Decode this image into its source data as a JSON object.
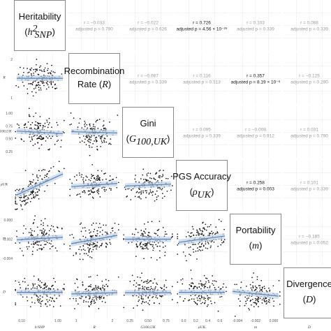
{
  "chart_data": {
    "type": "scatter",
    "variables": [
      {
        "key": "h",
        "label": "Heritability",
        "symbol": "h",
        "sup": "2",
        "sub": "SNP",
        "axis_label": "h²SNP",
        "ticks": [
          "0.10",
          "1.00"
        ],
        "range": [
          0.0,
          1.1
        ]
      },
      {
        "key": "R",
        "label": "Recombination",
        "label2": "Rate",
        "symbol": "R",
        "axis_label": "R",
        "ticks": [
          "1",
          "2"
        ],
        "range": [
          0.5,
          2.5
        ]
      },
      {
        "key": "G",
        "label": "Gini",
        "symbol": "G",
        "sub": "100,UK",
        "axis_label": "G100,UK",
        "ticks": [
          "0.25",
          "0.50",
          "0.75"
        ],
        "range": [
          0.2,
          0.95
        ]
      },
      {
        "key": "rho",
        "label": "PGS Accuracy",
        "symbol": "ρ",
        "sub": "UK",
        "axis_label": "ρUK",
        "ticks": [
          "0.0",
          "0.2",
          "0.4",
          "0.6"
        ],
        "range": [
          -0.05,
          0.7
        ]
      },
      {
        "key": "m",
        "label": "Portability",
        "symbol": "m",
        "axis_label": "m",
        "ticks": [
          "-0.004",
          "-0.002",
          "0.000"
        ],
        "range": [
          -0.005,
          0.001
        ]
      },
      {
        "key": "D",
        "label": "Divergence",
        "symbol": "D",
        "axis_label": "D",
        "ticks": [],
        "range": [
          0,
          1
        ]
      }
    ],
    "row_ticks": {
      "R": [
        "2",
        "1"
      ],
      "G": [
        "1.00",
        "0.75",
        "0.50",
        "0.25"
      ],
      "m": [
        "0.000",
        "-0.002",
        "-0.004"
      ]
    },
    "correlations": [
      {
        "row": 0,
        "col": 1,
        "r": "r = −0.033",
        "p": "adjusted p = 0.790",
        "sig": false
      },
      {
        "row": 0,
        "col": 2,
        "r": "r = −0.022",
        "p": "adjusted p = 0.626",
        "sig": false
      },
      {
        "row": 0,
        "col": 3,
        "r": "r = 0.726",
        "p": "adjusted p = 4.56 × 10⁻²⁹",
        "sig": true
      },
      {
        "row": 0,
        "col": 4,
        "r": "r = 0.103",
        "p": "adjusted p = 0.339",
        "sig": false
      },
      {
        "row": 0,
        "col": 5,
        "r": "r = 0.088",
        "p": "adjusted p = 0.339",
        "sig": false
      },
      {
        "row": 1,
        "col": 2,
        "r": "r = −0.087",
        "p": "adjusted p = 0.339",
        "sig": false
      },
      {
        "row": 1,
        "col": 3,
        "r": "r = 0.116",
        "p": "adjusted p = 0.313",
        "sig": false
      },
      {
        "row": 1,
        "col": 4,
        "r": "r = 0.357",
        "p": "adjusted p = 8.19 × 10⁻⁶",
        "sig": true
      },
      {
        "row": 1,
        "col": 5,
        "r": "r = −0.125",
        "p": "adjusted p = 0.290",
        "sig": false
      },
      {
        "row": 2,
        "col": 3,
        "r": "r = 0.095",
        "p": "adjusted p = 0.339",
        "sig": false
      },
      {
        "row": 2,
        "col": 4,
        "r": "r = −0.008",
        "p": "adjusted p = 0.912",
        "sig": false
      },
      {
        "row": 2,
        "col": 5,
        "r": "r = 0.031",
        "p": "adjusted p = 0.790",
        "sig": false
      },
      {
        "row": 3,
        "col": 4,
        "r": "r = 0.258",
        "p": "adjusted p = 0.003",
        "sig": true
      },
      {
        "row": 3,
        "col": 5,
        "r": "r = 0.101",
        "p": "adjusted p = 0.339",
        "sig": false
      },
      {
        "row": 4,
        "col": 5,
        "r": "r = −0.185",
        "p": "adjusted p = 0.052",
        "sig": false
      }
    ],
    "scatter_cells": [
      {
        "row": 1,
        "col": 0,
        "trend": [
          0.02,
          0.02
        ]
      },
      {
        "row": 2,
        "col": 0,
        "trend": [
          0.1,
          -0.1
        ]
      },
      {
        "row": 2,
        "col": 1,
        "trend": [
          0.05,
          -0.05
        ]
      },
      {
        "row": 3,
        "col": 0,
        "trend": [
          -0.75,
          0.9
        ]
      },
      {
        "row": 3,
        "col": 1,
        "trend": [
          -0.1,
          0.15
        ]
      },
      {
        "row": 3,
        "col": 2,
        "trend": [
          -0.05,
          0.1
        ]
      },
      {
        "row": 4,
        "col": 0,
        "trend": [
          -0.05,
          0.15
        ]
      },
      {
        "row": 4,
        "col": 1,
        "trend": [
          -0.35,
          0.3
        ]
      },
      {
        "row": 4,
        "col": 2,
        "trend": [
          0.0,
          0.0
        ]
      },
      {
        "row": 4,
        "col": 3,
        "trend": [
          -0.25,
          0.25
        ]
      },
      {
        "row": 5,
        "col": 0,
        "trend": [
          0.05,
          0.05
        ]
      },
      {
        "row": 5,
        "col": 1,
        "trend": [
          -0.08,
          0.02
        ]
      },
      {
        "row": 5,
        "col": 2,
        "trend": [
          0.02,
          0.02
        ]
      },
      {
        "row": 5,
        "col": 3,
        "trend": [
          0.05,
          0.05
        ]
      },
      {
        "row": 5,
        "col": 4,
        "trend": [
          0.12,
          -0.25
        ]
      }
    ],
    "colors": {
      "points": "#111111",
      "trend": "#4f81bd",
      "band": "#c6d4e6",
      "diag_border": "#8a8a8a",
      "grid": "#e4e4e4"
    }
  }
}
